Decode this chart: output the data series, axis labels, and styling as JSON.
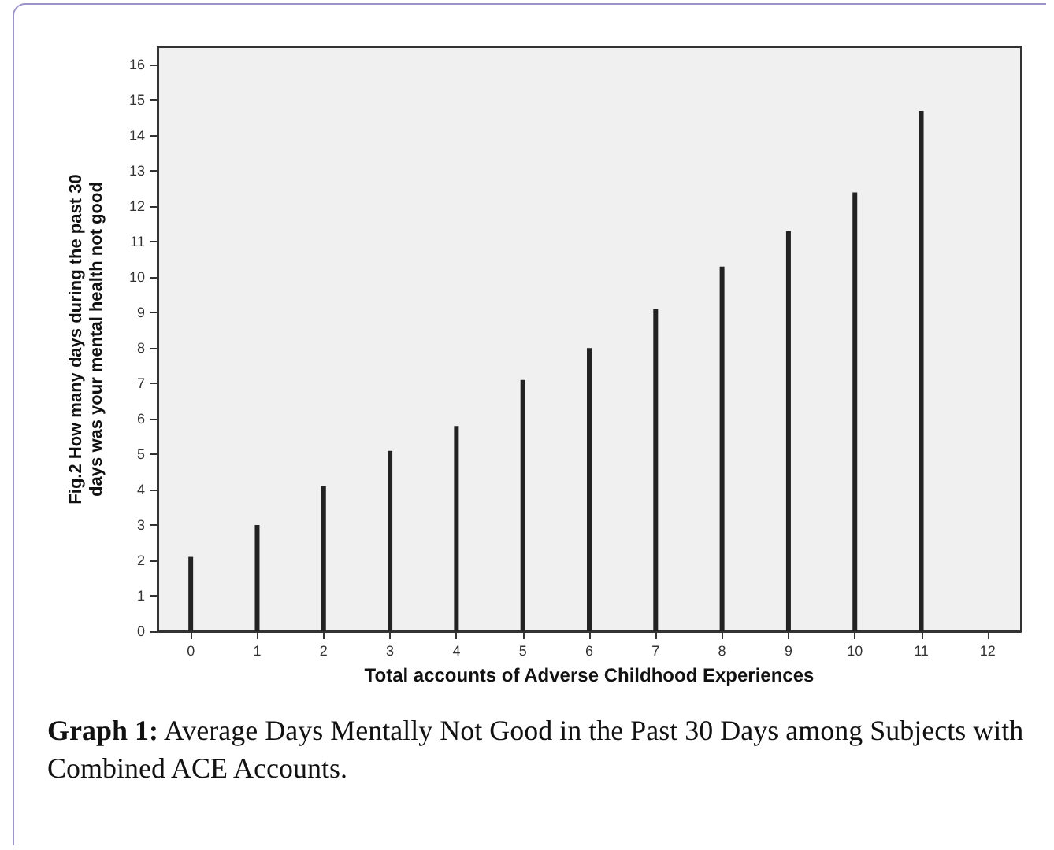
{
  "chart_data": {
    "type": "bar",
    "categories": [
      "0",
      "1",
      "2",
      "3",
      "4",
      "5",
      "6",
      "7",
      "8",
      "9",
      "10",
      "11",
      "12"
    ],
    "values": [
      2.1,
      3.0,
      4.1,
      5.1,
      5.8,
      7.1,
      8.0,
      9.1,
      10.3,
      11.3,
      12.4,
      14.7,
      null
    ],
    "color": "#222222",
    "xlabel": "Total accounts of Adverse Childhood Experiences",
    "ylabel": "Fig.2 How many days during the past 30 days was your mental health not good",
    "ylim": [
      0,
      16.5
    ],
    "yticks": [
      0,
      1,
      2,
      3,
      4,
      5,
      6,
      7,
      8,
      9,
      10,
      11,
      12,
      13,
      14,
      15,
      16
    ],
    "grid": false,
    "annotations": [
      "Graph 1: Average Days Mentally Not Good in the Past 30 Days among Subjects with Combined ACE Accounts."
    ]
  }
}
